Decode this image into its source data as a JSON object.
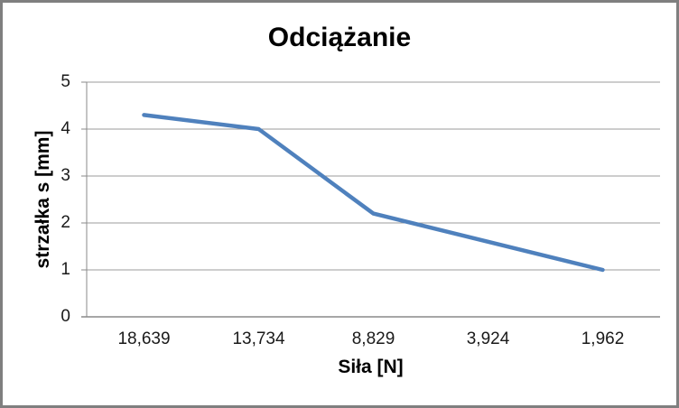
{
  "chart_data": {
    "type": "line",
    "title": "Odciążanie",
    "xlabel": "Siła [N]",
    "ylabel": "strzałka s [mm]",
    "categories": [
      "18,639",
      "13,734",
      "8,829",
      "3,924",
      "1,962"
    ],
    "series": [
      {
        "name": "strzałka s",
        "values": [
          4.3,
          4.0,
          2.2,
          1.6,
          1.0
        ]
      }
    ],
    "ylim": [
      0,
      5
    ],
    "y_tick_step": 1,
    "y_tick_labels": [
      "0",
      "1",
      "2",
      "3",
      "4",
      "5"
    ],
    "grid": "horizontal",
    "legend": "none",
    "colors": {
      "line": "#4F81BD",
      "grid": "#9b9b9b",
      "axis": "#8a8a8a",
      "frame_border": "#7f7f7f",
      "background": "#ffffff",
      "title_text": "#000000",
      "tick_text": "#1a1a1a"
    }
  }
}
